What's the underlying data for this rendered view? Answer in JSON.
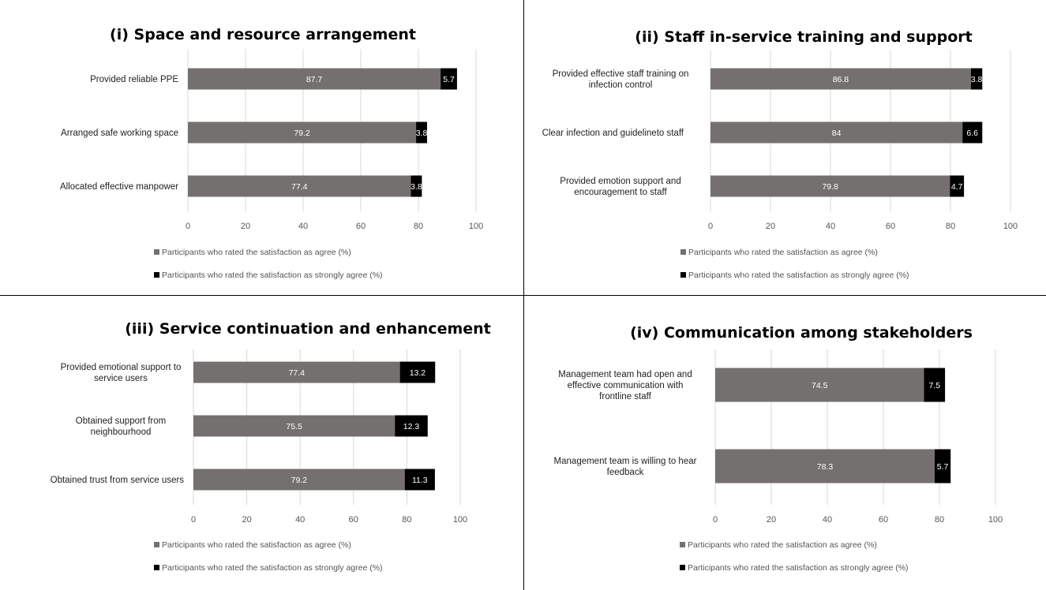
{
  "colors": {
    "agree": "#757070",
    "strongly_agree": "#000000",
    "grid": "#d9d9d9"
  },
  "chart_data": [
    {
      "type": "bar",
      "orientation": "horizontal",
      "stacked": true,
      "title": "(i) Space and resource arrangement",
      "categories": [
        "Provided reliable PPE",
        "Arranged safe working space",
        "Allocated effective manpower"
      ],
      "series": [
        {
          "name": "Participants who rated the satisfaction as agree (%)",
          "values": [
            87.7,
            79.2,
            77.4
          ]
        },
        {
          "name": "Participants who rated the satisfaction as strongly agree (%)",
          "values": [
            5.7,
            3.8,
            3.8
          ]
        }
      ],
      "xlim": [
        0,
        100
      ],
      "ticks": [
        "0",
        "20",
        "40",
        "60",
        "80",
        "100"
      ],
      "grid": true,
      "legend": "bottom"
    },
    {
      "type": "bar",
      "orientation": "horizontal",
      "stacked": true,
      "title": "(ii) Staff in-service training and support",
      "categories": [
        "Provided effective staff training on|infection control",
        "Clear infection and guidelineto staff",
        "Provided emotion support and|encouragement to staff"
      ],
      "series": [
        {
          "name": "Participants who rated the satisfaction as agree (%)",
          "values": [
            86.8,
            84,
            79.8
          ]
        },
        {
          "name": "Participants who rated the satisfaction as strongly agree (%)",
          "values": [
            3.8,
            6.6,
            4.7
          ]
        }
      ],
      "xlim": [
        0,
        100
      ],
      "ticks": [
        "0",
        "20",
        "40",
        "60",
        "80",
        "100"
      ],
      "grid": true,
      "legend": "bottom"
    },
    {
      "type": "bar",
      "orientation": "horizontal",
      "stacked": true,
      "title": "(iii) Service continuation  and enhancement",
      "categories": [
        "Provided emotional support to|service users",
        "Obtained support from|neighbourhood",
        "Obtained trust from service users"
      ],
      "series": [
        {
          "name": "Participants who rated the satisfaction as agree (%)",
          "values": [
            77.4,
            75.5,
            79.2
          ]
        },
        {
          "name": "Participants who rated the satisfaction as strongly agree (%)",
          "values": [
            13.2,
            12.3,
            11.3
          ]
        }
      ],
      "xlim": [
        0,
        100
      ],
      "ticks": [
        "0",
        "20",
        "40",
        "60",
        "80",
        "100"
      ],
      "grid": true,
      "legend": "bottom"
    },
    {
      "type": "bar",
      "orientation": "horizontal",
      "stacked": true,
      "title": "(iv) Communication  among stakeholders",
      "categories": [
        "Management team had open and|effective communication with|frontline staff",
        "Management team is willing to hear|feedback"
      ],
      "series": [
        {
          "name": "Participants who rated the satisfaction as agree (%)",
          "values": [
            74.5,
            78.3
          ]
        },
        {
          "name": "Participants who rated the satisfaction as strongly agree (%)",
          "values": [
            7.5,
            5.7
          ]
        }
      ],
      "xlim": [
        0,
        100
      ],
      "ticks": [
        "0",
        "20",
        "40",
        "60",
        "80",
        "100"
      ],
      "grid": true,
      "legend": "bottom"
    }
  ]
}
